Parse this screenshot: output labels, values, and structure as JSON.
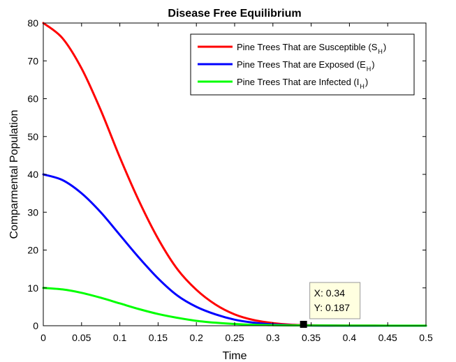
{
  "chart_data": {
    "type": "line",
    "title": "Disease Free Equilibrium",
    "xlabel": "Time",
    "ylabel": "Comparmental Population",
    "xlim": [
      0,
      0.5
    ],
    "ylim": [
      0,
      80
    ],
    "x_ticks": [
      "0",
      "0.05",
      "0.1",
      "0.15",
      "0.2",
      "0.25",
      "0.3",
      "0.35",
      "0.4",
      "0.45",
      "0.5"
    ],
    "y_ticks": [
      "0",
      "10",
      "20",
      "30",
      "40",
      "50",
      "60",
      "70",
      "80"
    ],
    "grid": false,
    "legend_position": "top-right",
    "x": [
      0,
      0.025,
      0.05,
      0.075,
      0.1,
      0.125,
      0.15,
      0.175,
      0.2,
      0.225,
      0.25,
      0.275,
      0.3,
      0.325,
      0.35,
      0.375,
      0.4,
      0.45,
      0.5
    ],
    "series": [
      {
        "name": "Pine Trees That are Susceptible (S",
        "subscript": "H",
        "suffix": ")",
        "color": "#ff0000",
        "values": [
          80,
          76,
          68,
          57,
          44.5,
          33,
          23,
          15,
          9.5,
          5.6,
          3,
          1.5,
          0.7,
          0.25,
          0.12,
          0.05,
          0.02,
          0.01,
          0
        ]
      },
      {
        "name": "Pine Trees That are Exposed (E",
        "subscript": "H",
        "suffix": ")",
        "color": "#0000ff",
        "values": [
          40,
          38.5,
          35,
          30,
          24,
          18,
          12.5,
          8,
          5,
          3,
          1.6,
          0.8,
          0.35,
          0.15,
          0.05,
          0.02,
          0.01,
          0,
          0
        ]
      },
      {
        "name": "Pine Trees That are Infected (I",
        "subscript": "H",
        "suffix": ")",
        "color": "#00ff00",
        "values": [
          10,
          9.6,
          8.7,
          7.4,
          5.9,
          4.4,
          3.1,
          2.1,
          1.3,
          0.8,
          0.45,
          0.25,
          0.15,
          0.1,
          0.08,
          0.06,
          0.05,
          0.03,
          0.02
        ]
      }
    ],
    "datatip": {
      "x": 0.34,
      "y": 0.187,
      "x_label": "X: 0.34",
      "y_label": "Y: 0.187"
    }
  }
}
